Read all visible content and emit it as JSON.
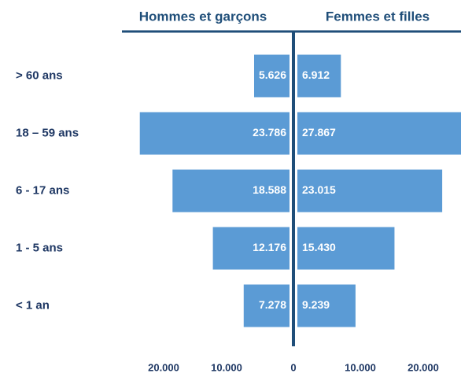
{
  "chart_data": {
    "type": "pyramid",
    "categories": [
      "> 60 ans",
      "18 – 59 ans",
      "6 - 17 ans",
      "1 - 5 ans",
      "< 1 an"
    ],
    "series": [
      {
        "name": "Hommes et garçons",
        "color": "#5b9bd5",
        "values": [
          5626,
          23786,
          18588,
          12176,
          7278
        ],
        "value_labels": [
          "5.626",
          "23.786",
          "18.588",
          "12.176",
          "7.278"
        ]
      },
      {
        "name": "Femmes et filles",
        "color": "#5b9bd5",
        "values": [
          6912,
          27867,
          23015,
          15430,
          9239
        ],
        "value_labels": [
          "6.912",
          "27.867",
          "23.015",
          "15.430",
          "9.239"
        ]
      }
    ],
    "xlim": [
      0,
      26000
    ],
    "xticks": [
      0,
      {
        "value": 10000,
        "label": "10.000"
      },
      {
        "value": 20000,
        "label": "20.000"
      }
    ]
  }
}
